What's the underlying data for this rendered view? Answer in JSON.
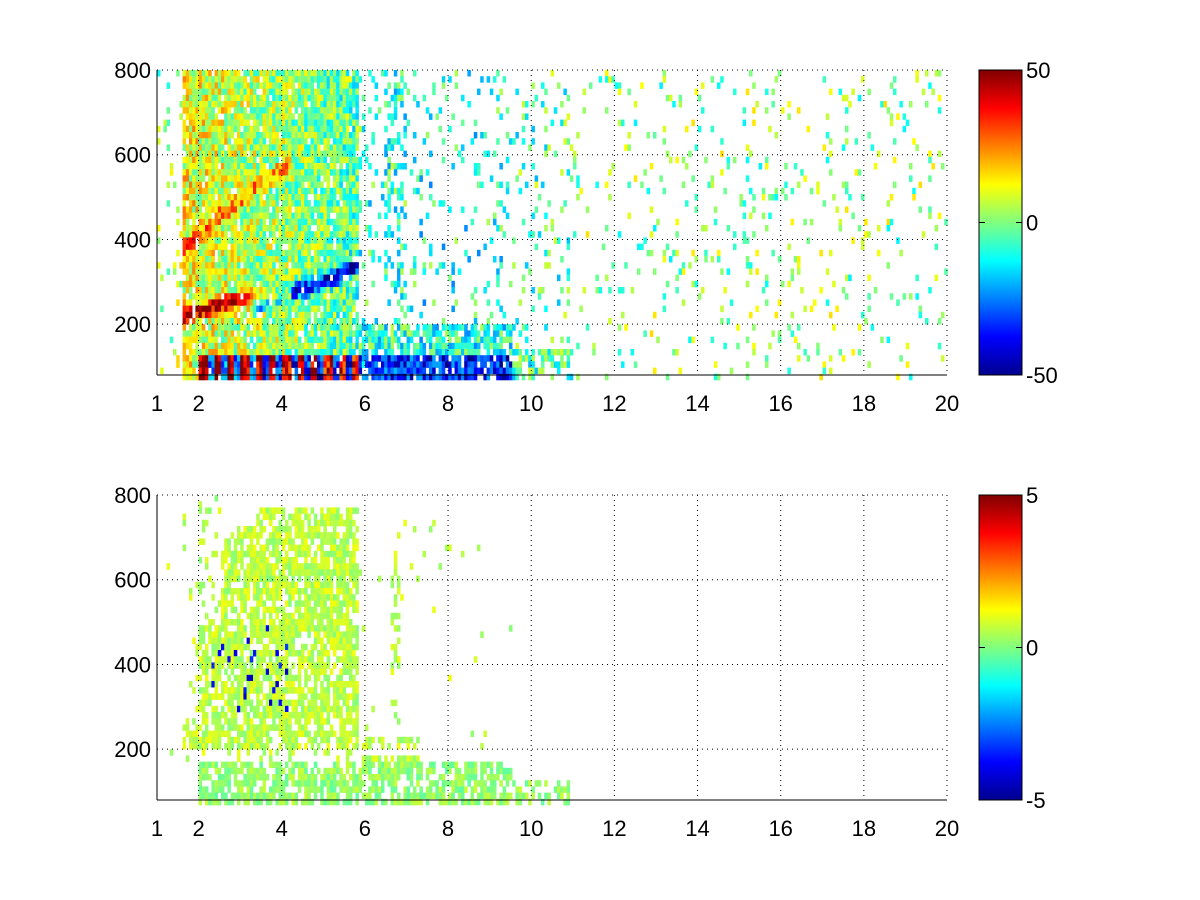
{
  "chart_data": [
    {
      "type": "heatmap",
      "title": "",
      "xlabel": "",
      "ylabel": "",
      "xlim": [
        1,
        20
      ],
      "ylim": [
        80,
        800
      ],
      "x_ticks": [
        1,
        2,
        4,
        6,
        8,
        10,
        12,
        14,
        16,
        18,
        20
      ],
      "y_ticks": [
        200,
        400,
        600,
        800
      ],
      "grid": true,
      "colormap": "jet",
      "colorbar": {
        "min": -50,
        "max": 50,
        "ticks": [
          50,
          0,
          -50
        ]
      },
      "features": [
        {
          "label": "positive ridge",
          "x": [
            1.5,
            2.0,
            2.5,
            3.0,
            3.5,
            4.0
          ],
          "y": [
            220,
            240,
            255,
            265,
            270,
            275
          ],
          "value": 45
        },
        {
          "label": "negative ridge",
          "x": [
            3.5,
            4.0,
            4.5,
            5.0,
            5.5,
            5.8
          ],
          "y": [
            260,
            275,
            290,
            310,
            330,
            350
          ],
          "value": -45
        },
        {
          "label": "low band",
          "x": [
            2.0,
            3.0,
            4.0,
            5.0,
            5.8
          ],
          "y": [
            105,
            105,
            105,
            105,
            105
          ],
          "value": 40
        }
      ]
    },
    {
      "type": "heatmap",
      "title": "",
      "xlabel": "",
      "ylabel": "",
      "xlim": [
        1,
        20
      ],
      "ylim": [
        80,
        800
      ],
      "x_ticks": [
        1,
        2,
        4,
        6,
        8,
        10,
        12,
        14,
        16,
        18,
        20
      ],
      "y_ticks": [
        200,
        400,
        600,
        800
      ],
      "grid": true,
      "colormap": "jet",
      "colorbar": {
        "min": -5,
        "max": 5,
        "ticks": [
          5,
          0,
          -5
        ]
      },
      "features": [
        {
          "label": "main cluster",
          "x": [
            1.8,
            5.8
          ],
          "y": [
            200,
            780
          ],
          "value": 0.5
        },
        {
          "label": "low band",
          "x": [
            2.0,
            11.0
          ],
          "y": [
            90,
            180
          ],
          "value": -0.3
        }
      ]
    }
  ]
}
